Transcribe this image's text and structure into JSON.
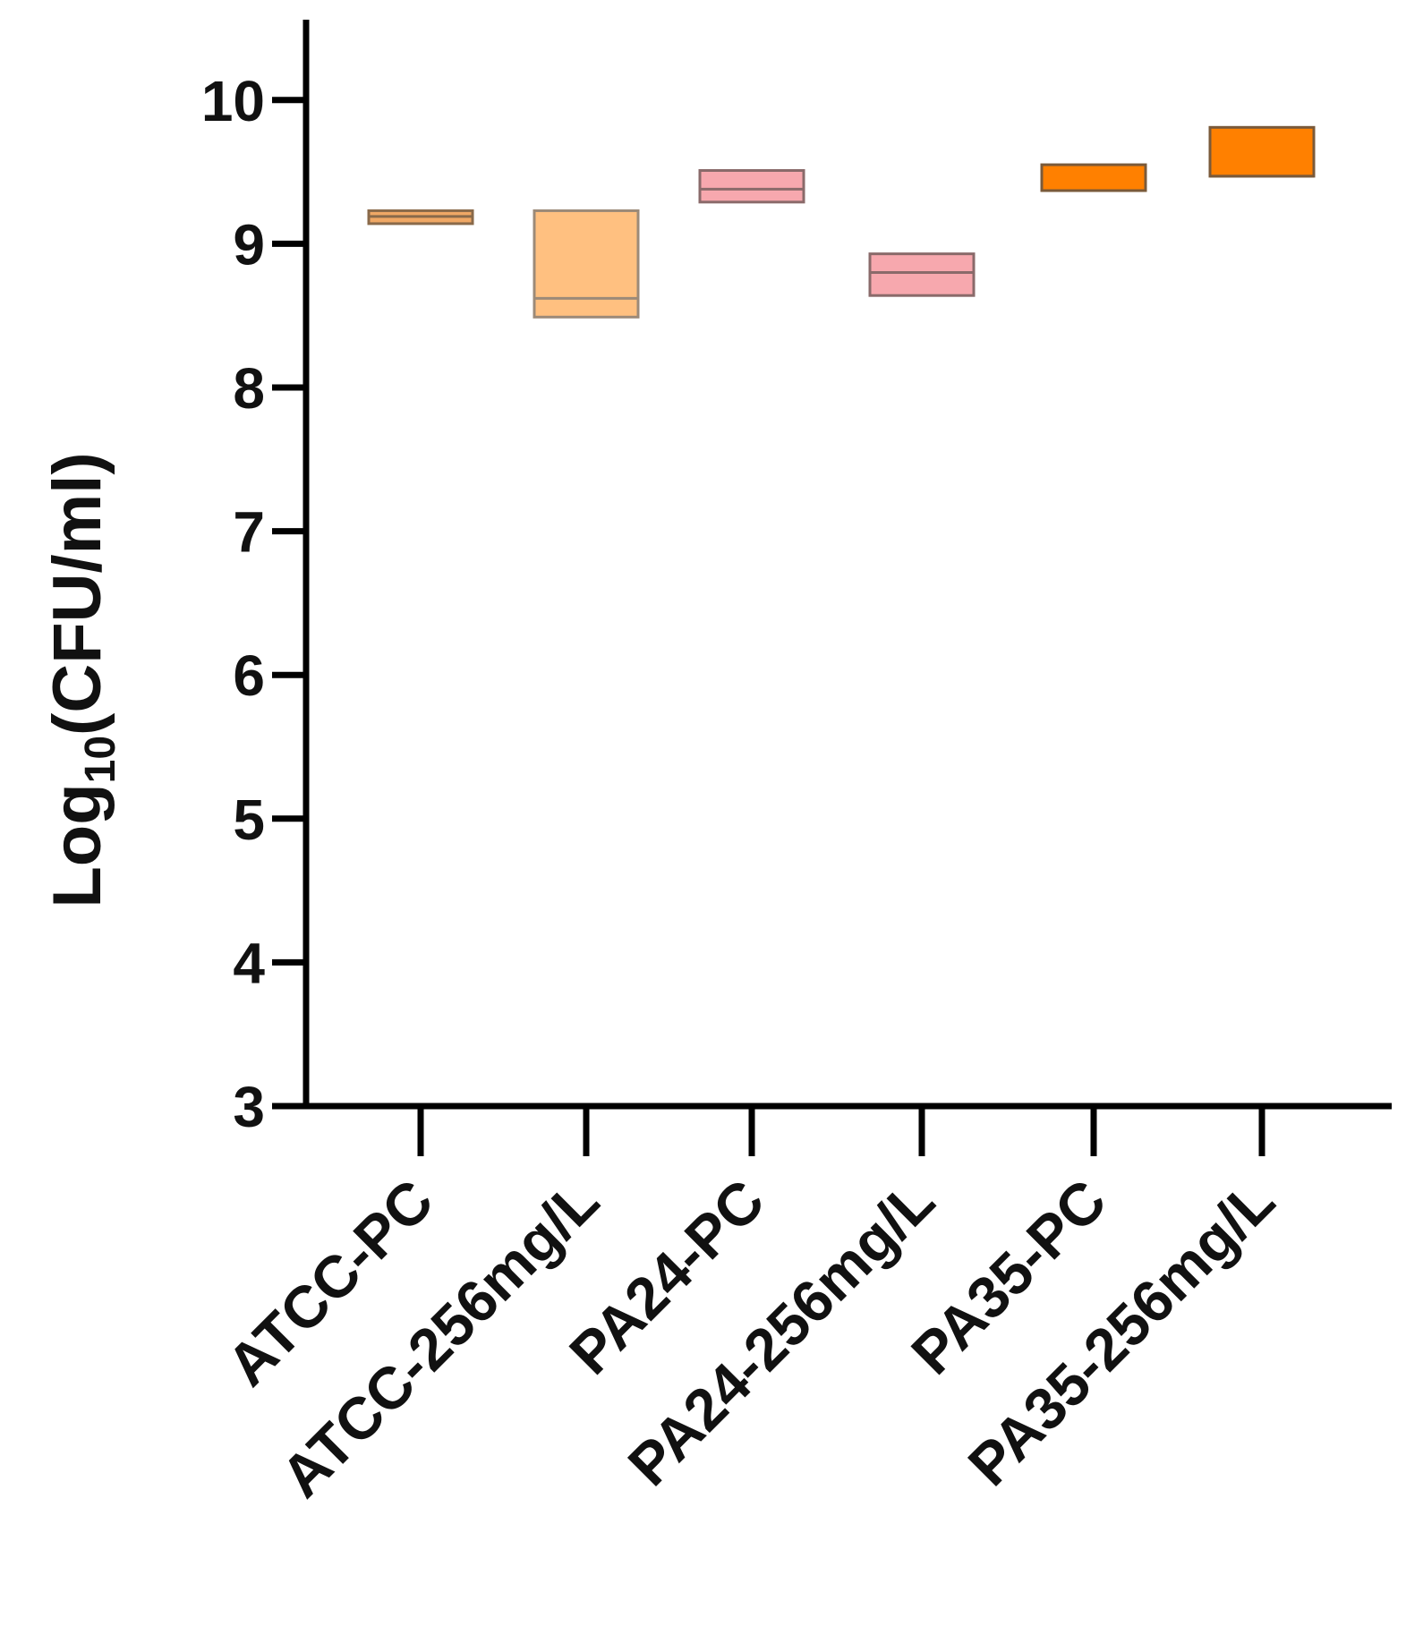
{
  "chart_data": {
    "type": "box",
    "title": "",
    "ylabel": {
      "main": "Log",
      "subscript": "10",
      "rest": "(CFU/ml)"
    },
    "xlabel": "",
    "ylim": [
      3,
      10.5
    ],
    "yticks": [
      "3",
      "4",
      "5",
      "6",
      "7",
      "8",
      "9",
      "10"
    ],
    "ytick_values": [
      3,
      4,
      5,
      6,
      7,
      8,
      9,
      10
    ],
    "grid": false,
    "categories": [
      "ATCC-PC",
      "ATCC-256mg/L",
      "PA24-PC",
      "PA24-256mg/L",
      "PA35-PC",
      "PA35-256mg/L"
    ],
    "boxes": [
      {
        "low": 9.14,
        "median": 9.19,
        "high": 9.23,
        "fill": "#f0a865",
        "stroke": "#8a6a4a"
      },
      {
        "low": 8.49,
        "median": 8.62,
        "high": 9.23,
        "fill": "#ffc080",
        "stroke": "#9c8a78"
      },
      {
        "low": 9.29,
        "median": 9.38,
        "high": 9.51,
        "fill": "#f7a8ae",
        "stroke": "#8a6a6a"
      },
      {
        "low": 8.64,
        "median": 8.8,
        "high": 8.93,
        "fill": "#f7a8ae",
        "stroke": "#8a6a6a"
      },
      {
        "low": 9.37,
        "median": 9.37,
        "high": 9.55,
        "fill": "#ff8000",
        "stroke": "#7a5a3a"
      },
      {
        "low": 9.47,
        "median": 9.47,
        "high": 9.81,
        "fill": "#ff8000",
        "stroke": "#7a5a3a"
      }
    ]
  }
}
